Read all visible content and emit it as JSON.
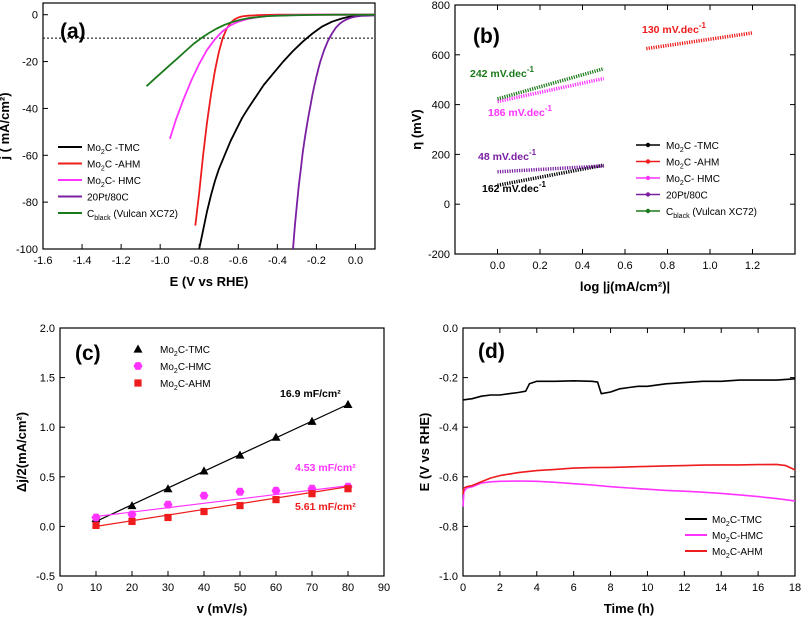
{
  "chart_data": [
    {
      "panel": "(a)",
      "type": "line",
      "xlabel": "E (V vs RHE)",
      "ylabel": "j ( mA/cm²)",
      "xlim": [
        -1.6,
        0.1
      ],
      "ylim": [
        -100,
        5
      ],
      "xticks": [
        "-1.6",
        "-1.4",
        "-1.2",
        "-1.0",
        "-0.8",
        "-0.6",
        "-0.4",
        "-0.2",
        "0.0"
      ],
      "yticks": [
        "0",
        "-20",
        "-40",
        "-60",
        "-80",
        "-100"
      ],
      "reference_line_y": -10,
      "legend_position": "left",
      "legend": [
        {
          "main": "Mo",
          "sub": "2",
          "rest": "C -TMC"
        },
        {
          "main": "Mo",
          "sub": "2",
          "rest": "C -AHM"
        },
        {
          "main": "Mo",
          "sub": "2",
          "rest": "C- HMC"
        },
        {
          "main": "20Pt/80C",
          "sub": "",
          "rest": ""
        },
        {
          "main": "C",
          "sub": "black",
          "rest": " (Vulcan XC72)"
        }
      ],
      "series": [
        {
          "name": "Mo2C -TMC",
          "color": "#000000",
          "x": [
            -0.8,
            -0.78,
            -0.76,
            -0.74,
            -0.72,
            -0.7,
            -0.67,
            -0.64,
            -0.61,
            -0.58,
            -0.55,
            -0.51,
            -0.47,
            -0.42,
            -0.37,
            -0.32,
            -0.27,
            -0.22,
            -0.17,
            -0.12,
            -0.07,
            -0.03,
            0.0,
            0.03,
            0.06,
            0.1
          ],
          "y": [
            -100,
            -92,
            -84,
            -77,
            -71,
            -66,
            -60,
            -54,
            -49,
            -44,
            -40,
            -35,
            -30,
            -25,
            -20,
            -15.5,
            -11.5,
            -8,
            -5,
            -3,
            -1.6,
            -0.8,
            -0.4,
            -0.2,
            -0.1,
            0
          ]
        },
        {
          "name": "Mo2C -AHM",
          "color": "#ee1c1c",
          "x": [
            -0.82,
            -0.8,
            -0.78,
            -0.76,
            -0.74,
            -0.72,
            -0.7,
            -0.68,
            -0.66,
            -0.64,
            -0.62,
            -0.6,
            -0.58,
            -0.55,
            -0.5,
            -0.45,
            -0.4,
            -0.3,
            -0.2,
            -0.1,
            0.0,
            0.1
          ],
          "y": [
            -90,
            -76,
            -60,
            -46,
            -34,
            -24,
            -16,
            -10,
            -6,
            -3.5,
            -2,
            -1.2,
            -0.7,
            -0.4,
            -0.2,
            -0.1,
            0,
            0,
            0,
            0,
            0,
            0
          ]
        },
        {
          "name": "Mo2C- HMC",
          "color": "#ff33ff",
          "x": [
            -0.95,
            -0.92,
            -0.88,
            -0.84,
            -0.8,
            -0.76,
            -0.72,
            -0.68,
            -0.64,
            -0.6,
            -0.56,
            -0.52,
            -0.48,
            -0.44,
            -0.4,
            -0.35,
            -0.3,
            -0.2,
            -0.1,
            0.0,
            0.1
          ],
          "y": [
            -53,
            -45,
            -36,
            -28,
            -21,
            -15,
            -10.5,
            -7,
            -4.5,
            -3,
            -2,
            -1.3,
            -0.8,
            -0.5,
            -0.3,
            -0.2,
            -0.1,
            0,
            0,
            0,
            0
          ]
        },
        {
          "name": "20Pt/80C",
          "color": "#7a1fa2",
          "x": [
            -0.32,
            -0.31,
            -0.3,
            -0.29,
            -0.28,
            -0.27,
            -0.26,
            -0.25,
            -0.24,
            -0.23,
            -0.22,
            -0.21,
            -0.2,
            -0.19,
            -0.18,
            -0.16,
            -0.14,
            -0.12,
            -0.1,
            -0.08,
            -0.06,
            -0.04,
            -0.02,
            0.0,
            0.03,
            0.06,
            0.1
          ],
          "y": [
            -100,
            -90,
            -81,
            -73,
            -66,
            -59,
            -53,
            -48,
            -43,
            -38.5,
            -34,
            -30,
            -26.5,
            -23,
            -20,
            -15,
            -11,
            -8,
            -5.5,
            -3.8,
            -2.6,
            -1.8,
            -1.2,
            -0.8,
            -0.5,
            -0.4,
            -0.3
          ]
        },
        {
          "name": "Cblack (Vulcan XC72)",
          "color": "#1a7a1a",
          "x": [
            -1.07,
            -1.03,
            -0.99,
            -0.95,
            -0.91,
            -0.87,
            -0.83,
            -0.79,
            -0.75,
            -0.71,
            -0.67,
            -0.63,
            -0.59,
            -0.55,
            -0.5,
            -0.45,
            -0.4,
            -0.3,
            -0.2,
            -0.1,
            0.0,
            0.1
          ],
          "y": [
            -30.5,
            -27.5,
            -24.5,
            -21.5,
            -18.5,
            -15.5,
            -12.5,
            -10,
            -7.8,
            -5.9,
            -4.3,
            -3.1,
            -2.2,
            -1.5,
            -1.0,
            -0.6,
            -0.4,
            -0.2,
            -0.1,
            0,
            0,
            0
          ]
        }
      ]
    },
    {
      "panel": "(b)",
      "type": "line",
      "xlabel": "log |j(mA/cm²)|",
      "ylabel": "η (mV)",
      "xlim": [
        -0.2,
        1.4
      ],
      "ylim": [
        -200,
        800
      ],
      "xticks": [
        "0.0",
        "0.2",
        "0.4",
        "0.6",
        "0.8",
        "1.0",
        "1.2"
      ],
      "yticks": [
        "-200",
        "0",
        "200",
        "400",
        "600",
        "800"
      ],
      "legend_position": "right",
      "legend": [
        {
          "main": "Mo",
          "sub": "2",
          "rest": "C -TMC"
        },
        {
          "main": "Mo",
          "sub": "2",
          "rest": "C -AHM"
        },
        {
          "main": "Mo",
          "sub": "2",
          "rest": "C- HMC"
        },
        {
          "main": "20Pt/80C",
          "sub": "",
          "rest": ""
        },
        {
          "main": "C",
          "sub": "black",
          "rest": " (Vulcan XC72)"
        }
      ],
      "series": [
        {
          "name": "Mo2C -TMC",
          "color": "#000000",
          "x": [
            0.0,
            0.5
          ],
          "y": [
            76,
            157
          ],
          "slope_label": "162 mV.dec",
          "slope_sup": "-1"
        },
        {
          "name": "Mo2C -AHM",
          "color": "#ee1c1c",
          "x": [
            0.7,
            1.2
          ],
          "y": [
            625,
            688
          ],
          "slope_label": "130 mV.dec",
          "slope_sup": "-1"
        },
        {
          "name": "Mo2C- HMC",
          "color": "#ff33ff",
          "x": [
            0.0,
            0.5
          ],
          "y": [
            412,
            505
          ],
          "slope_label": "186 mV.dec",
          "slope_sup": "-1"
        },
        {
          "name": "20Pt/80C",
          "color": "#7a1fa2",
          "x": [
            0.0,
            0.5
          ],
          "y": [
            130,
            154
          ],
          "slope_label": "48 mV.dec",
          "slope_sup": "-1"
        },
        {
          "name": "Cblack (Vulcan XC72)",
          "color": "#1a7a1a",
          "x": [
            0.0,
            0.5
          ],
          "y": [
            423,
            544
          ],
          "slope_label": "242 mV.dec",
          "slope_sup": "-1"
        }
      ]
    },
    {
      "panel": "(c)",
      "type": "scatter",
      "xlabel": "v (mV/s)",
      "ylabel": "Δj/2(mA/cm²)",
      "xlim": [
        0,
        90
      ],
      "ylim": [
        -0.5,
        2.0
      ],
      "xticks": [
        "0",
        "10",
        "20",
        "30",
        "40",
        "50",
        "60",
        "70",
        "80",
        "90"
      ],
      "yticks": [
        "-0.5",
        "0.0",
        "0.5",
        "1.0",
        "1.5",
        "2.0"
      ],
      "legend_position": "top-left",
      "legend": [
        {
          "main": "Mo",
          "sub": "2",
          "rest": "C-TMC"
        },
        {
          "main": "Mo",
          "sub": "2",
          "rest": "C-HMC"
        },
        {
          "main": "Mo",
          "sub": "2",
          "rest": "C-AHM"
        }
      ],
      "x": [
        10,
        20,
        30,
        40,
        50,
        60,
        70,
        80
      ],
      "series": [
        {
          "name": "Mo2C-TMC",
          "color": "#000000",
          "marker": "triangle",
          "values": [
            0.08,
            0.21,
            0.38,
            0.56,
            0.72,
            0.9,
            1.06,
            1.23
          ],
          "fit": [
            0.05,
            1.23
          ],
          "capacitance": "16.9 mF/cm²",
          "cap_color": "#000000"
        },
        {
          "name": "Mo2C-HMC",
          "color": "#ff33ff",
          "marker": "hexagon",
          "values": [
            0.09,
            0.12,
            0.22,
            0.31,
            0.35,
            0.36,
            0.38,
            0.4
          ],
          "fit": [
            0.1,
            0.41
          ],
          "capacitance": "4.53 mF/cm²",
          "cap_color": "#ff33ff"
        },
        {
          "name": "Mo2C-AHM",
          "color": "#ee1c1c",
          "marker": "square",
          "values": [
            0.01,
            0.05,
            0.09,
            0.15,
            0.21,
            0.27,
            0.33,
            0.38
          ],
          "fit": [
            0.0,
            0.4
          ],
          "capacitance": "5.61 mF/cm²",
          "cap_color": "#ee1c1c"
        }
      ]
    },
    {
      "panel": "(d)",
      "type": "line",
      "xlabel": "Time (h)",
      "ylabel": "E (V vs RHE)",
      "xlim": [
        0,
        18
      ],
      "ylim": [
        -1.0,
        0.0
      ],
      "xticks": [
        "0",
        "2",
        "4",
        "6",
        "8",
        "10",
        "12",
        "14",
        "16",
        "18"
      ],
      "yticks": [
        "0.0",
        "-0.2",
        "-0.4",
        "-0.6",
        "-0.8",
        "-1.0"
      ],
      "legend_position": "bottom-right",
      "legend": [
        {
          "main": "Mo",
          "sub": "2",
          "rest": "C-TMC"
        },
        {
          "main": "Mo",
          "sub": "2",
          "rest": "C-HMC"
        },
        {
          "main": "Mo",
          "sub": "2",
          "rest": "C-AHM"
        }
      ],
      "series": [
        {
          "name": "Mo2C-TMC",
          "color": "#000000",
          "x": [
            0,
            0.5,
            1,
            1.5,
            2,
            2.5,
            3,
            3.4,
            3.6,
            4,
            5,
            6,
            7,
            7.3,
            7.5,
            8,
            8.5,
            9,
            9.5,
            10,
            11,
            12,
            13,
            14,
            15,
            16,
            17,
            18
          ],
          "y": [
            -0.29,
            -0.285,
            -0.275,
            -0.27,
            -0.27,
            -0.265,
            -0.26,
            -0.255,
            -0.225,
            -0.215,
            -0.215,
            -0.213,
            -0.215,
            -0.218,
            -0.265,
            -0.258,
            -0.245,
            -0.24,
            -0.235,
            -0.235,
            -0.225,
            -0.22,
            -0.215,
            -0.215,
            -0.21,
            -0.21,
            -0.21,
            -0.205
          ]
        },
        {
          "name": "Mo2C-HMC",
          "color": "#ff33ff",
          "x": [
            0,
            0.05,
            0.2,
            0.5,
            1,
            1.5,
            2,
            3,
            4,
            5,
            6,
            7,
            8,
            9,
            10,
            11,
            12,
            13,
            14,
            15,
            16,
            17,
            18
          ],
          "y": [
            -0.72,
            -0.66,
            -0.645,
            -0.64,
            -0.625,
            -0.62,
            -0.618,
            -0.617,
            -0.618,
            -0.622,
            -0.628,
            -0.633,
            -0.64,
            -0.645,
            -0.65,
            -0.655,
            -0.658,
            -0.662,
            -0.667,
            -0.673,
            -0.68,
            -0.688,
            -0.697
          ]
        },
        {
          "name": "Mo2C-AHM",
          "color": "#ee1c1c",
          "x": [
            0,
            0.05,
            0.2,
            0.5,
            1,
            1.5,
            2,
            3,
            4,
            5,
            6,
            7,
            8,
            9,
            10,
            11,
            12,
            13,
            14,
            15,
            16,
            17,
            17.5,
            18
          ],
          "y": [
            -0.67,
            -0.645,
            -0.64,
            -0.635,
            -0.62,
            -0.605,
            -0.595,
            -0.583,
            -0.575,
            -0.57,
            -0.565,
            -0.563,
            -0.562,
            -0.56,
            -0.558,
            -0.556,
            -0.555,
            -0.553,
            -0.552,
            -0.552,
            -0.551,
            -0.55,
            -0.555,
            -0.572
          ]
        }
      ]
    }
  ]
}
